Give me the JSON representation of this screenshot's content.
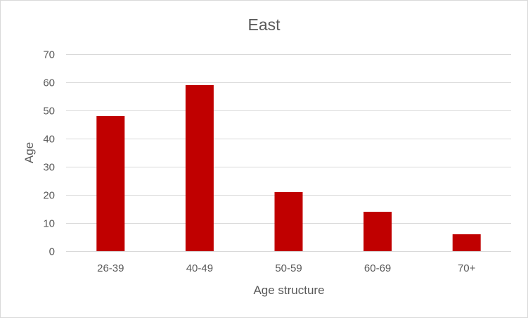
{
  "chart_data": {
    "type": "bar",
    "title": "East",
    "xlabel": "Age structure",
    "ylabel": "Age",
    "categories": [
      "26-39",
      "40-49",
      "50-59",
      "60-69",
      "70+"
    ],
    "series": [
      {
        "values": [
          48,
          59,
          21,
          14,
          6
        ],
        "color": "#c00000"
      }
    ],
    "ylim": [
      0,
      70
    ],
    "yticks": [
      0,
      10,
      20,
      30,
      40,
      50,
      60,
      70
    ],
    "grid": true,
    "legend": "none",
    "colors": {
      "bar": "#c00000",
      "grid": "#d9d9d9",
      "axis": "#d9d9d9",
      "text": "#595959"
    }
  }
}
